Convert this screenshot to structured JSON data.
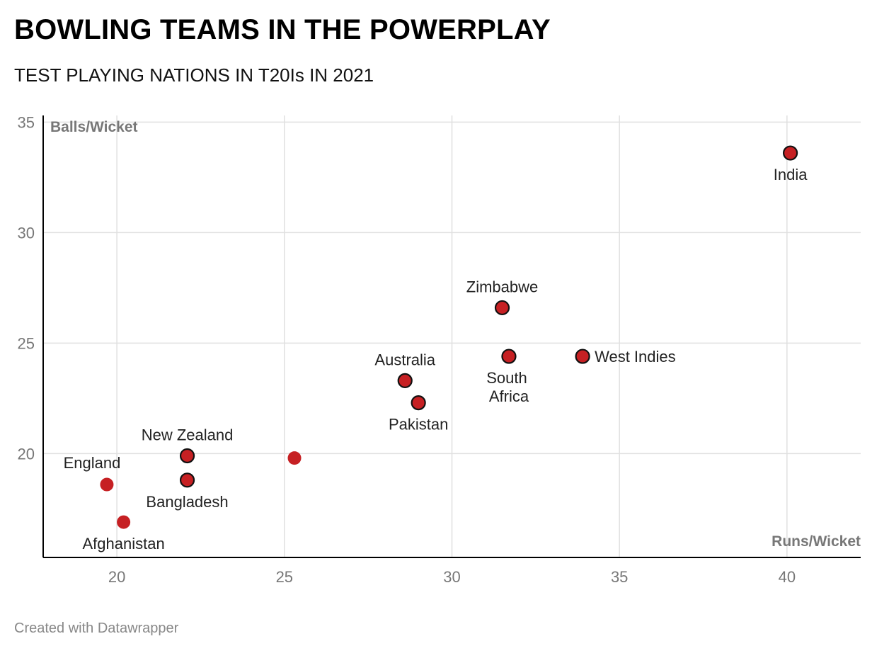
{
  "header": {
    "title": "BOWLING TEAMS IN THE POWERPLAY",
    "subtitle": "TEST PLAYING NATIONS IN T20Is IN 2021"
  },
  "footer": {
    "credit": "Created with Datawrapper"
  },
  "colors": {
    "point": "#c62023",
    "point_outline": "#111111",
    "grid": "#e0e0e0",
    "axis": "#000000"
  },
  "chart_data": {
    "type": "scatter",
    "title": "BOWLING TEAMS IN THE POWERPLAY",
    "subtitle": "TEST PLAYING NATIONS IN T20Is IN 2021",
    "xlabel": "Runs/Wicket",
    "ylabel": "Balls/Wicket",
    "xlim": [
      17.8,
      42.2
    ],
    "ylim": [
      15.3,
      35.3
    ],
    "xticks": [
      20,
      25,
      30,
      35,
      40
    ],
    "yticks": [
      20,
      25,
      30,
      35
    ],
    "grid": true,
    "points": [
      {
        "label": "India",
        "x": 40.1,
        "y": 33.6,
        "outlined": true,
        "label_pos": "below"
      },
      {
        "label": "Zimbabwe",
        "x": 31.5,
        "y": 26.6,
        "outlined": true,
        "label_pos": "above"
      },
      {
        "label": "South Africa",
        "x": 31.7,
        "y": 24.4,
        "outlined": true,
        "label_pos": "below"
      },
      {
        "label": "West Indies",
        "x": 33.9,
        "y": 24.4,
        "outlined": true,
        "label_pos": "right"
      },
      {
        "label": "Australia",
        "x": 28.6,
        "y": 23.3,
        "outlined": true,
        "label_pos": "above"
      },
      {
        "label": "Pakistan",
        "x": 29.0,
        "y": 22.3,
        "outlined": true,
        "label_pos": "below"
      },
      {
        "label": "New Zealand",
        "x": 22.1,
        "y": 19.9,
        "outlined": true,
        "label_pos": "above"
      },
      {
        "label": "Bangladesh",
        "x": 22.1,
        "y": 18.8,
        "outlined": true,
        "label_pos": "below"
      },
      {
        "label": "",
        "x": 25.3,
        "y": 19.8,
        "outlined": false,
        "label_pos": "none"
      },
      {
        "label": "England",
        "x": 19.7,
        "y": 18.6,
        "outlined": false,
        "label_pos": "above-left"
      },
      {
        "label": "Afghanistan",
        "x": 20.2,
        "y": 16.9,
        "outlined": false,
        "label_pos": "below"
      }
    ]
  }
}
